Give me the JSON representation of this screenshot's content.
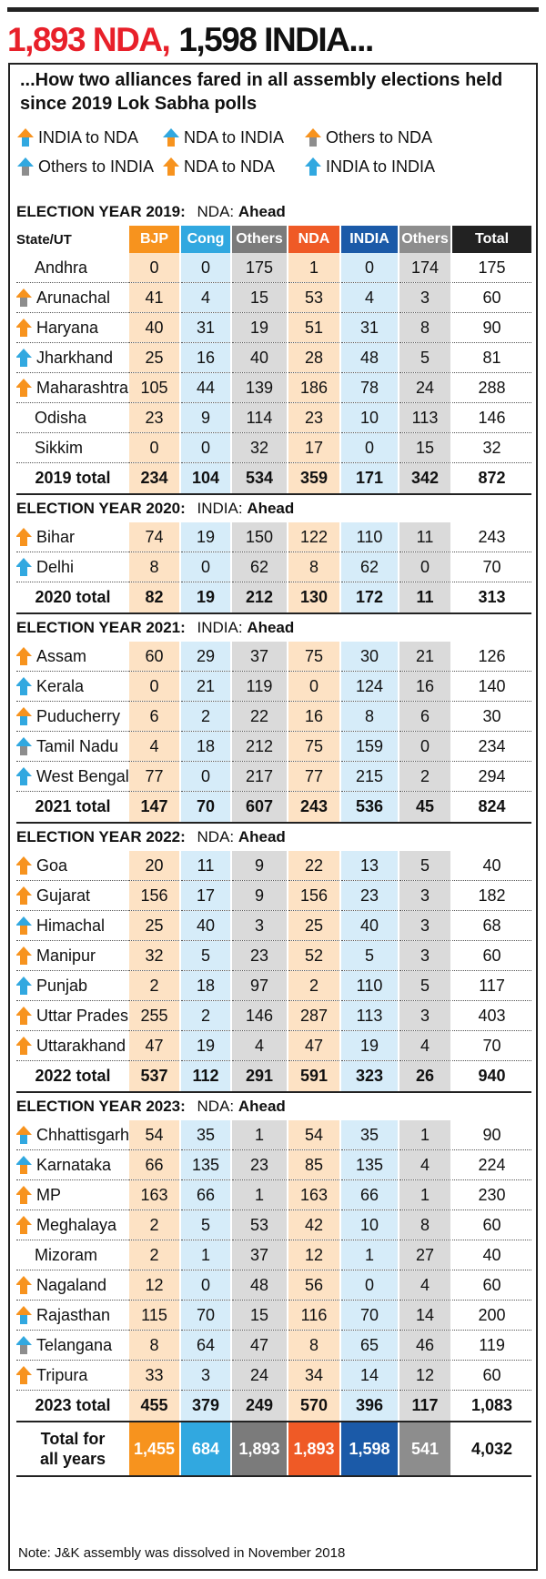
{
  "headline": {
    "red": "1,893 NDA,",
    "black": "1,598 INDIA..."
  },
  "subtitle": "...How two alliances fared in all assembly elections held since 2019 Lok Sabha polls",
  "legend": [
    {
      "label": "INDIA to NDA",
      "arrow": "india-to-nda"
    },
    {
      "label": "NDA to INDIA",
      "arrow": "nda-to-india"
    },
    {
      "label": "Others to NDA",
      "arrow": "others-to-nda"
    },
    {
      "label": "Others to INDIA",
      "arrow": "others-to-india"
    },
    {
      "label": "NDA to NDA",
      "arrow": "nda-to-nda"
    },
    {
      "label": "INDIA to INDIA",
      "arrow": "india-to-india"
    }
  ],
  "colors": {
    "india-to-nda": [
      "#31a8e0",
      "#f7931e"
    ],
    "nda-to-india": [
      "#f7931e",
      "#31a8e0"
    ],
    "others-to-nda": [
      "#8d8d8d",
      "#f7931e"
    ],
    "others-to-india": [
      "#8d8d8d",
      "#31a8e0"
    ],
    "nda-to-nda": [
      "#f7931e",
      "#f7931e"
    ],
    "india-to-india": [
      "#31a8e0",
      "#31a8e0"
    ]
  },
  "columns": [
    "BJP",
    "Cong",
    "Others",
    "NDA",
    "INDIA",
    "Others",
    "Total"
  ],
  "state_header": "State/UT",
  "years": [
    {
      "label": "ELECTION YEAR 2019:",
      "leader": "NDA:",
      "status": "Ahead",
      "rows": [
        {
          "name": "Andhra",
          "arrow": "",
          "v": [
            "0",
            "0",
            "175",
            "1",
            "0",
            "174",
            "175"
          ]
        },
        {
          "name": "Arunachal",
          "arrow": "others-to-nda",
          "v": [
            "41",
            "4",
            "15",
            "53",
            "4",
            "3",
            "60"
          ]
        },
        {
          "name": "Haryana",
          "arrow": "nda-to-nda",
          "v": [
            "40",
            "31",
            "19",
            "51",
            "31",
            "8",
            "90"
          ]
        },
        {
          "name": "Jharkhand",
          "arrow": "india-to-india",
          "v": [
            "25",
            "16",
            "40",
            "28",
            "48",
            "5",
            "81"
          ]
        },
        {
          "name": "Maharashtra",
          "arrow": "nda-to-nda",
          "v": [
            "105",
            "44",
            "139",
            "186",
            "78",
            "24",
            "288"
          ]
        },
        {
          "name": "Odisha",
          "arrow": "",
          "v": [
            "23",
            "9",
            "114",
            "23",
            "10",
            "113",
            "146"
          ]
        },
        {
          "name": "Sikkim",
          "arrow": "",
          "v": [
            "0",
            "0",
            "32",
            "17",
            "0",
            "15",
            "32"
          ]
        }
      ],
      "total": {
        "name": "2019 total",
        "v": [
          "234",
          "104",
          "534",
          "359",
          "171",
          "342",
          "872"
        ]
      }
    },
    {
      "label": "ELECTION YEAR 2020:",
      "leader": "INDIA:",
      "status": "Ahead",
      "rows": [
        {
          "name": "Bihar",
          "arrow": "nda-to-nda",
          "v": [
            "74",
            "19",
            "150",
            "122",
            "110",
            "11",
            "243"
          ]
        },
        {
          "name": "Delhi",
          "arrow": "india-to-india",
          "v": [
            "8",
            "0",
            "62",
            "8",
            "62",
            "0",
            "70"
          ]
        }
      ],
      "total": {
        "name": "2020 total",
        "v": [
          "82",
          "19",
          "212",
          "130",
          "172",
          "11",
          "313"
        ]
      }
    },
    {
      "label": "ELECTION YEAR 2021:",
      "leader": "INDIA:",
      "status": "Ahead",
      "rows": [
        {
          "name": "Assam",
          "arrow": "nda-to-nda",
          "v": [
            "60",
            "29",
            "37",
            "75",
            "30",
            "21",
            "126"
          ]
        },
        {
          "name": "Kerala",
          "arrow": "india-to-india",
          "v": [
            "0",
            "21",
            "119",
            "0",
            "124",
            "16",
            "140"
          ]
        },
        {
          "name": "Puducherry",
          "arrow": "india-to-nda",
          "v": [
            "6",
            "2",
            "22",
            "16",
            "8",
            "6",
            "30"
          ]
        },
        {
          "name": "Tamil Nadu",
          "arrow": "others-to-india",
          "v": [
            "4",
            "18",
            "212",
            "75",
            "159",
            "0",
            "234"
          ]
        },
        {
          "name": "West Bengal",
          "arrow": "india-to-india",
          "v": [
            "77",
            "0",
            "217",
            "77",
            "215",
            "2",
            "294"
          ]
        }
      ],
      "total": {
        "name": "2021 total",
        "v": [
          "147",
          "70",
          "607",
          "243",
          "536",
          "45",
          "824"
        ]
      }
    },
    {
      "label": "ELECTION YEAR 2022:",
      "leader": "NDA:",
      "status": "Ahead",
      "rows": [
        {
          "name": "Goa",
          "arrow": "nda-to-nda",
          "v": [
            "20",
            "11",
            "9",
            "22",
            "13",
            "5",
            "40"
          ]
        },
        {
          "name": "Gujarat",
          "arrow": "nda-to-nda",
          "v": [
            "156",
            "17",
            "9",
            "156",
            "23",
            "3",
            "182"
          ]
        },
        {
          "name": "Himachal",
          "arrow": "nda-to-india",
          "v": [
            "25",
            "40",
            "3",
            "25",
            "40",
            "3",
            "68"
          ]
        },
        {
          "name": "Manipur",
          "arrow": "nda-to-nda",
          "v": [
            "32",
            "5",
            "23",
            "52",
            "5",
            "3",
            "60"
          ]
        },
        {
          "name": "Punjab",
          "arrow": "india-to-india",
          "v": [
            "2",
            "18",
            "97",
            "2",
            "110",
            "5",
            "117"
          ]
        },
        {
          "name": "Uttar Pradesh",
          "arrow": "nda-to-nda",
          "v": [
            "255",
            "2",
            "146",
            "287",
            "113",
            "3",
            "403"
          ]
        },
        {
          "name": "Uttarakhand",
          "arrow": "nda-to-nda",
          "v": [
            "47",
            "19",
            "4",
            "47",
            "19",
            "4",
            "70"
          ]
        }
      ],
      "total": {
        "name": "2022 total",
        "v": [
          "537",
          "112",
          "291",
          "591",
          "323",
          "26",
          "940"
        ]
      }
    },
    {
      "label": "ELECTION YEAR 2023:",
      "leader": "NDA:",
      "status": "Ahead",
      "rows": [
        {
          "name": "Chhattisgarh",
          "arrow": "india-to-nda",
          "v": [
            "54",
            "35",
            "1",
            "54",
            "35",
            "1",
            "90"
          ]
        },
        {
          "name": "Karnataka",
          "arrow": "nda-to-india",
          "v": [
            "66",
            "135",
            "23",
            "85",
            "135",
            "4",
            "224"
          ]
        },
        {
          "name": "MP",
          "arrow": "nda-to-nda",
          "v": [
            "163",
            "66",
            "1",
            "163",
            "66",
            "1",
            "230"
          ]
        },
        {
          "name": "Meghalaya",
          "arrow": "nda-to-nda",
          "v": [
            "2",
            "5",
            "53",
            "42",
            "10",
            "8",
            "60"
          ]
        },
        {
          "name": "Mizoram",
          "arrow": "",
          "v": [
            "2",
            "1",
            "37",
            "12",
            "1",
            "27",
            "40"
          ]
        },
        {
          "name": "Nagaland",
          "arrow": "nda-to-nda",
          "v": [
            "12",
            "0",
            "48",
            "56",
            "0",
            "4",
            "60"
          ]
        },
        {
          "name": "Rajasthan",
          "arrow": "india-to-nda",
          "v": [
            "115",
            "70",
            "15",
            "116",
            "70",
            "14",
            "200"
          ]
        },
        {
          "name": "Telangana",
          "arrow": "others-to-india",
          "v": [
            "8",
            "64",
            "47",
            "8",
            "65",
            "46",
            "119"
          ]
        },
        {
          "name": "Tripura",
          "arrow": "nda-to-nda",
          "v": [
            "33",
            "3",
            "24",
            "34",
            "14",
            "12",
            "60"
          ]
        }
      ],
      "total": {
        "name": "2023 total",
        "v": [
          "455",
          "379",
          "249",
          "570",
          "396",
          "117",
          "1,083"
        ]
      }
    }
  ],
  "grand_total": {
    "name_line1": "Total for",
    "name_line2": "all years",
    "v": [
      "1,455",
      "684",
      "1,893",
      "1,893",
      "1,598",
      "541",
      "4,032"
    ]
  },
  "note": "Note: J&K assembly was dissolved in November 2018"
}
